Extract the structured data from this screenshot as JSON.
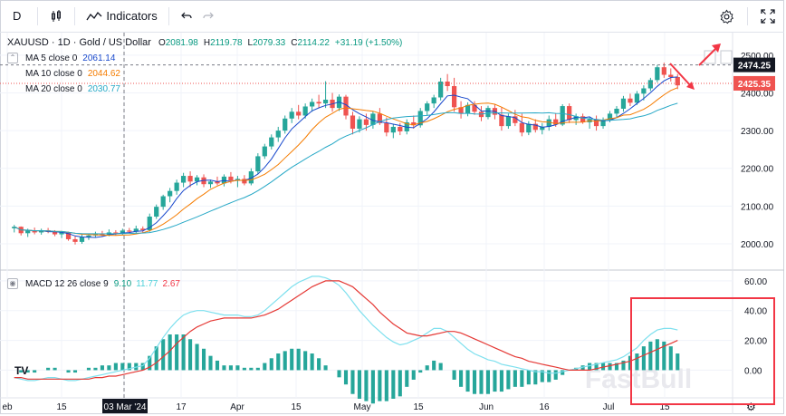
{
  "toolbar": {
    "interval": "D",
    "indicators_label": "Indicators"
  },
  "header": {
    "symbol_line": "XAUUSD · 1D · Gold / US Dollar",
    "ohlc": [
      {
        "k": "O",
        "v": "2081.98"
      },
      {
        "k": "H",
        "v": "2119.78"
      },
      {
        "k": "L",
        "v": "2079.33"
      },
      {
        "k": "C",
        "v": "2114.22"
      }
    ],
    "change": "+31.19 (+1.50%)"
  },
  "indicators": [
    {
      "label": "MA 5 close 0",
      "value": "2061.14",
      "color": "#1848cc"
    },
    {
      "label": "MA 10 close 0",
      "value": "2044.62",
      "color": "#f57c00"
    },
    {
      "label": "MA 20 close 0",
      "value": "2030.77",
      "color": "#26a8c6"
    }
  ],
  "macd_legend": {
    "label": "MACD 12 26 close 9",
    "values": [
      {
        "v": "9.10",
        "color": "#089981"
      },
      {
        "v": "11.77",
        "color": "#4fd1d9"
      },
      {
        "v": "2.67",
        "color": "#f23645"
      }
    ]
  },
  "price_labels": {
    "dashed": "2474.25",
    "red": "2425.35"
  },
  "cursor_date": "03 Mar '24",
  "watermark": "FastBull",
  "colors": {
    "up": "#26a69a",
    "down": "#ef5350",
    "macd": "#7ee0ee",
    "signal": "#e53935",
    "hist": "#26a69a",
    "annot": "#f23645"
  },
  "chart_data": [
    {
      "type": "candlestick",
      "title": "XAUUSD · 1D · Gold / US Dollar",
      "y_ticks": [
        2000,
        2100,
        2200,
        2300,
        2400,
        2500
      ],
      "ylim": [
        1935,
        2555
      ],
      "x_ticks": [
        "eb",
        "15",
        "03 Mar '24",
        "17",
        "Apr",
        "15",
        "May",
        "15",
        "Jun",
        "16",
        "Jul",
        "15"
      ],
      "candles": [
        [
          2041,
          2050,
          2030,
          2045
        ],
        [
          2045,
          2046,
          2022,
          2028
        ],
        [
          2028,
          2040,
          2018,
          2035
        ],
        [
          2035,
          2043,
          2025,
          2030
        ],
        [
          2030,
          2040,
          2024,
          2036
        ],
        [
          2036,
          2042,
          2028,
          2032
        ],
        [
          2032,
          2036,
          2020,
          2025
        ],
        [
          2025,
          2034,
          2015,
          2030
        ],
        [
          2030,
          2032,
          2008,
          2012
        ],
        [
          2012,
          2020,
          1998,
          2005
        ],
        [
          2005,
          2025,
          2000,
          2018
        ],
        [
          2018,
          2026,
          2010,
          2022
        ],
        [
          2022,
          2032,
          2016,
          2026
        ],
        [
          2026,
          2034,
          2018,
          2024
        ],
        [
          2024,
          2038,
          2020,
          2030
        ],
        [
          2030,
          2036,
          2022,
          2028
        ],
        [
          2028,
          2040,
          2024,
          2035
        ],
        [
          2035,
          2042,
          2028,
          2032
        ],
        [
          2032,
          2048,
          2026,
          2040
        ],
        [
          2040,
          2046,
          2030,
          2036
        ],
        [
          2036,
          2080,
          2032,
          2072
        ],
        [
          2072,
          2104,
          2066,
          2098
        ],
        [
          2098,
          2130,
          2090,
          2126
        ],
        [
          2126,
          2148,
          2110,
          2140
        ],
        [
          2140,
          2170,
          2130,
          2162
        ],
        [
          2162,
          2188,
          2150,
          2180
        ],
        [
          2180,
          2192,
          2150,
          2165
        ],
        [
          2165,
          2182,
          2155,
          2176
        ],
        [
          2176,
          2184,
          2150,
          2158
        ],
        [
          2158,
          2170,
          2148,
          2165
        ],
        [
          2165,
          2178,
          2155,
          2160
        ],
        [
          2160,
          2184,
          2152,
          2178
        ],
        [
          2178,
          2190,
          2160,
          2168
        ],
        [
          2168,
          2180,
          2150,
          2172
        ],
        [
          2172,
          2182,
          2155,
          2160
        ],
        [
          2160,
          2200,
          2155,
          2192
        ],
        [
          2192,
          2240,
          2185,
          2232
        ],
        [
          2232,
          2265,
          2225,
          2258
        ],
        [
          2258,
          2290,
          2250,
          2282
        ],
        [
          2282,
          2310,
          2270,
          2300
        ],
        [
          2300,
          2340,
          2292,
          2332
        ],
        [
          2332,
          2360,
          2320,
          2350
        ],
        [
          2350,
          2368,
          2330,
          2340
        ],
        [
          2340,
          2372,
          2332,
          2364
        ],
        [
          2364,
          2385,
          2350,
          2376
        ],
        [
          2376,
          2395,
          2360,
          2372
        ],
        [
          2372,
          2431,
          2360,
          2382
        ],
        [
          2382,
          2400,
          2350,
          2360
        ],
        [
          2360,
          2396,
          2352,
          2390
        ],
        [
          2390,
          2395,
          2330,
          2340
        ],
        [
          2340,
          2350,
          2290,
          2305
        ],
        [
          2305,
          2338,
          2295,
          2330
        ],
        [
          2330,
          2345,
          2300,
          2315
        ],
        [
          2315,
          2352,
          2305,
          2345
        ],
        [
          2345,
          2360,
          2315,
          2320
        ],
        [
          2320,
          2335,
          2285,
          2295
        ],
        [
          2295,
          2318,
          2280,
          2310
        ],
        [
          2310,
          2320,
          2288,
          2298
        ],
        [
          2298,
          2330,
          2290,
          2322
        ],
        [
          2322,
          2340,
          2305,
          2314
        ],
        [
          2314,
          2360,
          2308,
          2352
        ],
        [
          2352,
          2378,
          2340,
          2372
        ],
        [
          2372,
          2395,
          2360,
          2388
        ],
        [
          2388,
          2440,
          2380,
          2430
        ],
        [
          2430,
          2450,
          2405,
          2418
        ],
        [
          2418,
          2440,
          2350,
          2362
        ],
        [
          2362,
          2378,
          2332,
          2345
        ],
        [
          2345,
          2375,
          2338,
          2368
        ],
        [
          2368,
          2378,
          2342,
          2350
        ],
        [
          2350,
          2365,
          2325,
          2336
        ],
        [
          2336,
          2366,
          2330,
          2360
        ],
        [
          2360,
          2370,
          2330,
          2342
        ],
        [
          2342,
          2362,
          2300,
          2312
        ],
        [
          2312,
          2345,
          2305,
          2338
        ],
        [
          2338,
          2355,
          2312,
          2320
        ],
        [
          2320,
          2345,
          2285,
          2295
        ],
        [
          2295,
          2325,
          2288,
          2318
        ],
        [
          2318,
          2330,
          2295,
          2302
        ],
        [
          2302,
          2320,
          2290,
          2310
        ],
        [
          2310,
          2340,
          2300,
          2330
        ],
        [
          2330,
          2345,
          2310,
          2316
        ],
        [
          2316,
          2370,
          2312,
          2365
        ],
        [
          2365,
          2372,
          2320,
          2328
        ],
        [
          2328,
          2345,
          2315,
          2338
        ],
        [
          2338,
          2345,
          2318,
          2322
        ],
        [
          2322,
          2335,
          2305,
          2330
        ],
        [
          2330,
          2340,
          2300,
          2312
        ],
        [
          2312,
          2335,
          2305,
          2328
        ],
        [
          2328,
          2352,
          2322,
          2345
        ],
        [
          2345,
          2365,
          2335,
          2358
        ],
        [
          2358,
          2392,
          2350,
          2385
        ],
        [
          2385,
          2398,
          2365,
          2374
        ],
        [
          2374,
          2405,
          2368,
          2398
        ],
        [
          2398,
          2420,
          2380,
          2412
        ],
        [
          2412,
          2440,
          2405,
          2434
        ],
        [
          2434,
          2474,
          2428,
          2468
        ],
        [
          2468,
          2480,
          2440,
          2448
        ],
        [
          2448,
          2465,
          2430,
          2442
        ],
        [
          2442,
          2450,
          2410,
          2420
        ]
      ],
      "ma_5_last": 2061.14,
      "ma_10_last": 2044.62,
      "ma_20_last": 2030.77,
      "price_marks": {
        "dashed": 2474.25,
        "red": 2425.35
      }
    },
    {
      "type": "macd",
      "title": "MACD 12 26 close 9",
      "y_ticks": [
        0,
        20,
        40,
        60
      ],
      "ylim": [
        -18,
        66
      ],
      "macd_line_values": [
        -5,
        -6,
        -7,
        -7,
        -6,
        -5,
        -5,
        -6,
        -7,
        -7,
        -6,
        -5,
        -4,
        -3,
        -2,
        -1,
        0,
        1,
        2,
        3,
        8,
        15,
        22,
        28,
        33,
        37,
        39,
        40,
        40,
        39,
        38,
        37,
        37,
        37,
        36,
        36,
        37,
        40,
        44,
        48,
        52,
        56,
        59,
        61,
        63,
        63,
        62,
        60,
        57,
        52,
        46,
        40,
        35,
        30,
        26,
        22,
        19,
        17,
        18,
        20,
        22,
        25,
        28,
        28,
        26,
        22,
        18,
        14,
        11,
        9,
        7,
        6,
        4,
        3,
        2,
        1,
        0,
        -1,
        -1,
        -2,
        -2,
        -1,
        0,
        1,
        2,
        3,
        4,
        5,
        6,
        7,
        9,
        12,
        15,
        20,
        24,
        27,
        28,
        28,
        27
      ],
      "signal_line_values": [
        -5,
        -5,
        -6,
        -6,
        -6,
        -6,
        -6,
        -6,
        -6,
        -6,
        -6,
        -6,
        -5,
        -5,
        -4,
        -4,
        -3,
        -2,
        -1,
        0,
        2,
        5,
        9,
        13,
        18,
        22,
        26,
        29,
        31,
        33,
        34,
        35,
        35,
        35,
        35,
        35,
        36,
        37,
        39,
        41,
        44,
        47,
        50,
        53,
        56,
        58,
        60,
        60,
        60,
        58,
        56,
        52,
        48,
        44,
        39,
        35,
        31,
        28,
        25,
        24,
        23,
        23,
        24,
        25,
        26,
        26,
        25,
        23,
        21,
        19,
        17,
        15,
        13,
        11,
        9,
        8,
        6,
        5,
        4,
        3,
        2,
        1,
        0,
        0,
        0,
        0,
        1,
        2,
        3,
        4,
        5,
        6,
        8,
        10,
        12,
        14,
        16,
        18,
        20
      ],
      "histogram_values_shown_as_bars": true,
      "last_values": {
        "hist": 9.1,
        "macd": 11.77,
        "signal": 2.67
      }
    }
  ]
}
